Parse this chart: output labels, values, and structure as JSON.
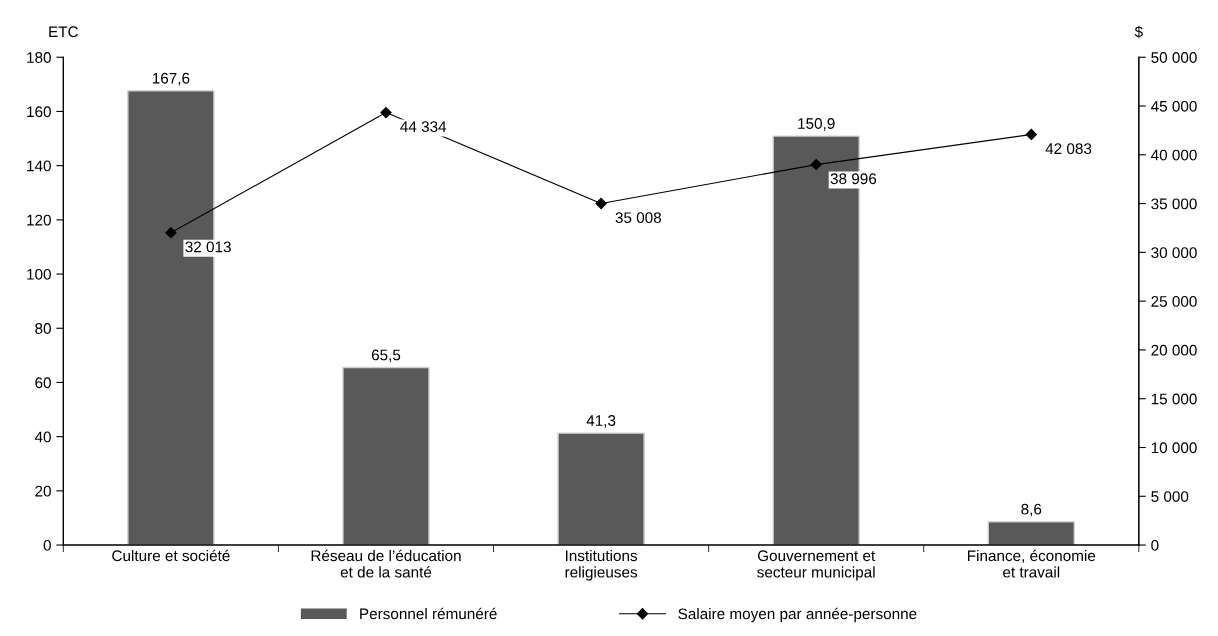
{
  "chart_data": {
    "type": "bar",
    "categories": [
      "Culture et société",
      "Réseau de l’éducation\net de la santé",
      "Institutions\nreligieuses",
      "Gouvernement et\nsecteur municipal",
      "Finance, économie\net travail"
    ],
    "ylabel": "ETC",
    "y2label": "$",
    "ylim": [
      0,
      180
    ],
    "yticks": [
      0,
      20,
      40,
      60,
      80,
      100,
      120,
      140,
      160,
      180
    ],
    "y2lim": [
      0,
      50000
    ],
    "y2ticks": [
      {
        "value": 0,
        "label": "0"
      },
      {
        "value": 5000,
        "label": "5 000"
      },
      {
        "value": 10000,
        "label": "10 000"
      },
      {
        "value": 15000,
        "label": "15 000"
      },
      {
        "value": 20000,
        "label": "20 000"
      },
      {
        "value": 25000,
        "label": "25 000"
      },
      {
        "value": 30000,
        "label": "30 000"
      },
      {
        "value": 35000,
        "label": "35 000"
      },
      {
        "value": 40000,
        "label": "40 000"
      },
      {
        "value": 45000,
        "label": "45 000"
      },
      {
        "value": 50000,
        "label": "50 000"
      }
    ],
    "series": [
      {
        "name": "Personnel rémunéré",
        "color": "#595959",
        "values": [
          167.6,
          65.5,
          41.3,
          150.9,
          8.6
        ],
        "value_labels": [
          "167,6",
          "65,5",
          "41,3",
          "150,9",
          "8,6"
        ]
      },
      {
        "name": "Salaire moyen par année-personne",
        "type": "line",
        "axis": "y2",
        "color": "#000000",
        "marker": "diamond",
        "values": [
          32013,
          44334,
          35008,
          38996,
          42083
        ],
        "value_labels": [
          "32 013",
          "44 334",
          "35 008",
          "38 996",
          "42 083"
        ]
      }
    ],
    "legend": "bottom",
    "grid": false
  }
}
